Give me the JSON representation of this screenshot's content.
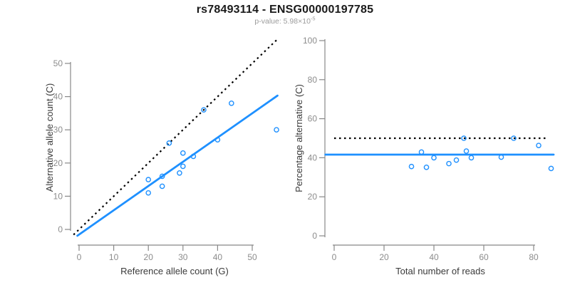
{
  "header": {
    "title": "rs78493114 - ENSG00000197785",
    "subtitle_text": "p-value: 5.98×10",
    "subtitle_exponent": "-5"
  },
  "colors": {
    "accent_blue": "#1E90FF",
    "reference_black": "#000000",
    "axis_gray": "#888888",
    "tick_label_gray": "#8c8c8c",
    "axis_title_dark": "#3a3a3a"
  },
  "chart_data": [
    {
      "type": "scatter",
      "xlabel": "Reference allele count (G)",
      "ylabel": "Alternative allele count (C)",
      "x_ticks": [
        0,
        10,
        20,
        30,
        40,
        50
      ],
      "y_ticks": [
        0,
        10,
        20,
        30,
        40,
        50
      ],
      "xlim": [
        -2.5,
        57.5
      ],
      "ylim": [
        -2.2,
        57.5
      ],
      "grid": false,
      "legend": null,
      "points": [
        [
          20,
          15
        ],
        [
          20,
          11
        ],
        [
          24,
          16
        ],
        [
          24,
          13
        ],
        [
          26,
          26
        ],
        [
          29,
          17
        ],
        [
          30,
          23
        ],
        [
          30,
          19
        ],
        [
          33,
          22
        ],
        [
          36,
          36
        ],
        [
          40,
          27
        ],
        [
          44,
          38
        ],
        [
          57,
          30
        ]
      ],
      "identity_line": {
        "style": "dotted",
        "from": [
          -1.6,
          -1.6
        ],
        "to": [
          57.4,
          57.4
        ]
      },
      "fit_line": {
        "style": "solid",
        "from": [
          -0.5,
          -1.9
        ],
        "to": [
          57.3,
          40.3
        ]
      }
    },
    {
      "type": "scatter",
      "xlabel": "Total number of reads",
      "ylabel": "Percentage alternative (C)",
      "x_ticks": [
        0,
        20,
        40,
        60,
        80
      ],
      "y_ticks": [
        0,
        20,
        40,
        60,
        80,
        100
      ],
      "xlim": [
        -3.8,
        90.5
      ],
      "ylim": [
        0,
        100
      ],
      "grid": false,
      "legend": null,
      "points": [
        [
          31,
          35.5
        ],
        [
          35,
          42.9
        ],
        [
          37,
          35.1
        ],
        [
          40,
          40
        ],
        [
          46,
          37
        ],
        [
          49,
          38.8
        ],
        [
          52,
          50
        ],
        [
          53,
          43.4
        ],
        [
          55,
          40
        ],
        [
          67,
          40.3
        ],
        [
          72,
          50
        ],
        [
          82,
          46.3
        ],
        [
          87,
          34.5
        ]
      ],
      "identity_line": {
        "style": "dotted",
        "from": [
          0,
          50
        ],
        "to": [
          85.5,
          50
        ]
      },
      "fit_line": {
        "style": "solid",
        "from": [
          -3.5,
          41.6
        ],
        "to": [
          88,
          41.6
        ]
      }
    }
  ]
}
